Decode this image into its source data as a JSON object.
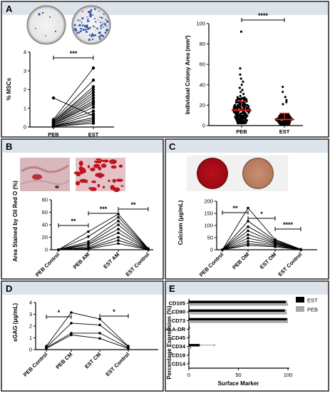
{
  "panels": {
    "A": "A",
    "B": "B",
    "C": "C",
    "D": "D",
    "E": "E"
  },
  "colors": {
    "band": "#dce3ea",
    "divider": "#1a1a1a",
    "mean_line": "#e31a1c",
    "est_bar": "#000000",
    "peb_bar": "#a8a8a8"
  },
  "chart_data": [
    {
      "id": "A-left",
      "type": "line",
      "ylabel": "% MSCs",
      "categories": [
        "PEB",
        "EST"
      ],
      "ylim": [
        0,
        4
      ],
      "yticks": [
        "0",
        "1",
        "2",
        "3",
        "4"
      ],
      "significance": "***",
      "series": [
        {
          "values": [
            1.55,
            0.6
          ]
        },
        {
          "values": [
            0.4,
            3.15
          ]
        },
        {
          "values": [
            0.35,
            2.5
          ]
        },
        {
          "values": [
            0.3,
            2.15
          ]
        },
        {
          "values": [
            0.3,
            2.0
          ]
        },
        {
          "values": [
            0.25,
            1.85
          ]
        },
        {
          "values": [
            0.25,
            1.7
          ]
        },
        {
          "values": [
            0.2,
            1.55
          ]
        },
        {
          "values": [
            0.2,
            1.4
          ]
        },
        {
          "values": [
            0.15,
            1.3
          ]
        },
        {
          "values": [
            0.15,
            1.2
          ]
        },
        {
          "values": [
            0.1,
            1.05
          ]
        },
        {
          "values": [
            0.1,
            0.85
          ]
        },
        {
          "values": [
            0.05,
            0.7
          ]
        },
        {
          "values": [
            0.05,
            0.5
          ]
        },
        {
          "values": [
            0.05,
            0.4
          ]
        },
        {
          "values": [
            0.02,
            0.3
          ]
        },
        {
          "values": [
            0.02,
            0.2
          ]
        }
      ]
    },
    {
      "id": "A-right",
      "type": "scatter",
      "ylabel": "Individual Colony Area (mm²)",
      "categories": [
        "PEB",
        "EST"
      ],
      "ylim": [
        0,
        100
      ],
      "yticks": [
        "0",
        "20",
        "40",
        "60",
        "80",
        "100"
      ],
      "significance": "****",
      "means": [
        15,
        6
      ],
      "sd_upper": [
        24,
        12
      ],
      "outliers": [
        {
          "group": "PEB",
          "values": [
            92,
            56,
            50,
            46,
            43,
            40,
            37,
            35,
            33,
            31,
            29,
            27
          ]
        },
        {
          "group": "EST",
          "values": [
            38,
            33,
            28,
            25,
            23,
            21
          ]
        }
      ]
    },
    {
      "id": "B",
      "type": "line",
      "ylabel": "Area Stained by Oil Red O (%)",
      "categories": [
        "PEB Control",
        "PEB AM",
        "EST AM",
        "EST Control"
      ],
      "ylim": [
        0,
        80
      ],
      "yticks": [
        "0",
        "20",
        "40",
        "60",
        "80"
      ],
      "significance": [
        "**",
        "***",
        "**"
      ],
      "series": [
        {
          "values": [
            0,
            29,
            57,
            2
          ]
        },
        {
          "values": [
            0,
            21,
            52,
            1.5
          ]
        },
        {
          "values": [
            0,
            13,
            46,
            1.2
          ]
        },
        {
          "values": [
            0,
            10,
            40,
            1
          ]
        },
        {
          "values": [
            0,
            8,
            33,
            0.8
          ]
        },
        {
          "values": [
            0,
            5,
            27,
            0.6
          ]
        },
        {
          "values": [
            0,
            3,
            20,
            0.4
          ]
        },
        {
          "values": [
            0,
            2,
            15,
            0.2
          ]
        },
        {
          "values": [
            0,
            1,
            10,
            0
          ]
        }
      ]
    },
    {
      "id": "C",
      "type": "line",
      "ylabel": "Calcium (μg/mL)",
      "categories": [
        "PEB Control",
        "PEB OM",
        "EST OM",
        "EST Control"
      ],
      "ylim": [
        0,
        200
      ],
      "yticks": [
        "0",
        "50",
        "100",
        "150",
        "200"
      ],
      "significance": [
        "**",
        "*",
        "****"
      ],
      "series": [
        {
          "values": [
            0,
            172,
            42,
            2
          ]
        },
        {
          "values": [
            0,
            118,
            38,
            2
          ]
        },
        {
          "values": [
            0,
            95,
            34,
            1.5
          ]
        },
        {
          "values": [
            0,
            78,
            30,
            1.5
          ]
        },
        {
          "values": [
            0,
            62,
            27,
            1
          ]
        },
        {
          "values": [
            0,
            48,
            24,
            1
          ]
        },
        {
          "values": [
            0,
            35,
            20,
            0.5
          ]
        },
        {
          "values": [
            0,
            25,
            16,
            0.5
          ]
        },
        {
          "values": [
            0,
            18,
            12,
            0
          ]
        }
      ]
    },
    {
      "id": "D",
      "type": "line",
      "ylabel": "sGAG (μg/mL)",
      "categories": [
        "PEB Control",
        "PEB CM",
        "EST CM",
        "EST Control"
      ],
      "ylim": [
        0,
        4
      ],
      "yticks": [
        "0",
        "1",
        "2",
        "3",
        "4"
      ],
      "significance": [
        "*",
        "*"
      ],
      "series": [
        {
          "values": [
            0.3,
            3.15,
            2.6,
            0.3
          ]
        },
        {
          "values": [
            0.2,
            2.25,
            2.1,
            0.25
          ]
        },
        {
          "values": [
            0.15,
            1.4,
            1.4,
            0.15
          ]
        },
        {
          "values": [
            0.1,
            1.25,
            0.95,
            0.1
          ]
        }
      ]
    },
    {
      "id": "E",
      "type": "bar",
      "orientation": "horizontal",
      "xlabel": "Surface Marker",
      "ylabel": "Percentage Expression (%)",
      "categories": [
        "CD105",
        "CD90",
        "CD73",
        "HLA-DR",
        "CD45",
        "CD34",
        "CD19",
        "CD14"
      ],
      "xlim": [
        0,
        100
      ],
      "xticks": [
        "0",
        "50",
        "100"
      ],
      "legend": {
        "position": "top-right"
      },
      "series": [
        {
          "name": "EST",
          "values": [
            98,
            97,
            99,
            0.6,
            0.5,
            11,
            0.3,
            0.3
          ],
          "err": [
            1,
            1,
            0.5,
            0.3,
            0.2,
            15,
            0.1,
            0.1
          ]
        },
        {
          "name": "PEB",
          "values": [
            99,
            98,
            99,
            0.4,
            0.4,
            1.5,
            0.2,
            0.2
          ],
          "err": [
            0.5,
            0.5,
            0.5,
            0.2,
            0.2,
            0.5,
            0.1,
            0.1
          ]
        }
      ]
    }
  ]
}
